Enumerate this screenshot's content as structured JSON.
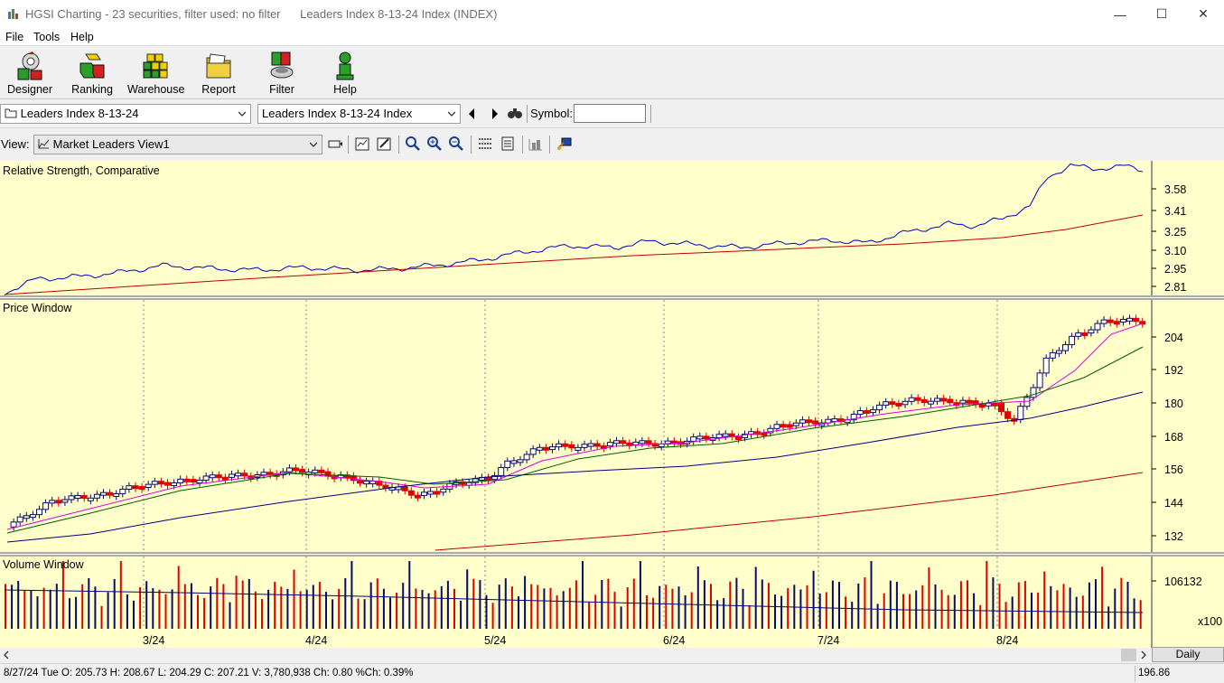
{
  "window": {
    "title": "HGSI Charting - 23 securities, filter used: no filter      Leaders Index 8-13-24 Index (INDEX)",
    "controls": [
      "—",
      "☐",
      "✕"
    ]
  },
  "menu": [
    "File",
    "Tools",
    "Help"
  ],
  "toolbar": {
    "buttons": [
      {
        "label": "Designer",
        "icon": "designer-icon"
      },
      {
        "label": "Ranking",
        "icon": "ranking-icon"
      },
      {
        "label": "Warehouse",
        "icon": "warehouse-icon"
      },
      {
        "label": "Report",
        "icon": "report-icon"
      },
      {
        "label": "Filter",
        "icon": "filter-icon"
      },
      {
        "label": "Help",
        "icon": "help-icon"
      }
    ]
  },
  "selectors": {
    "portfolio": "Leaders Index 8-13-24",
    "security": "Leaders Index 8-13-24 Index",
    "symbol_label": "Symbol:",
    "symbol_value": "",
    "view_label": "View:",
    "view": "Market Leaders View1"
  },
  "panes": {
    "rs": {
      "title": "Relative Strength, Comparative",
      "ticks": [
        "3.58",
        "3.41",
        "3.25",
        "3.10",
        "2.95",
        "2.81"
      ]
    },
    "price": {
      "title": "Price Window",
      "ticks": [
        "204",
        "192",
        "180",
        "168",
        "156",
        "144",
        "132"
      ]
    },
    "volume": {
      "title": "Volume Window",
      "ticks": [
        "106132"
      ],
      "multiplier": "x100"
    }
  },
  "x_labels": [
    "3/24",
    "4/24",
    "5/24",
    "6/24",
    "7/24",
    "8/24"
  ],
  "period_button": "Daily",
  "status": {
    "text": "8/27/24 Tue O: 205.73 H: 208.67 L: 204.29 C: 207.21 V: 3,780,938 Ch: 0.80 %Ch: 0.39%",
    "value": "196.86"
  },
  "colors": {
    "chart_bg": "#ffffcc",
    "up": "#0a0a6a",
    "down": "#e00000",
    "ma_short": "#e000e0",
    "ma_mid": "#006000",
    "ma_long": "#000080",
    "ma_200": "#c00000",
    "rs_line": "#0000c0"
  }
}
